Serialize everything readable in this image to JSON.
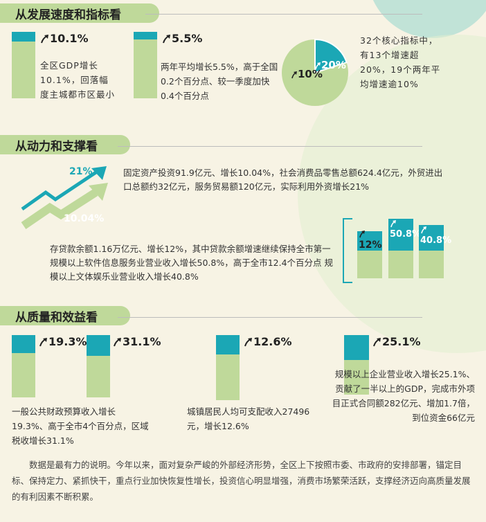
{
  "colors": {
    "teal": "#1ba7b5",
    "green": "#bfd99a",
    "bg": "#f7f3e4"
  },
  "section1": {
    "title": "从发展速度和指标看",
    "gdp": {
      "value": "10.1%",
      "text": "全区GDP增长10.1%，回落幅度主城都市区最小"
    },
    "avg": {
      "value": "5.5%",
      "text": "两年平均增长5.5%，高于全国0.2个百分点、较一季度加快0.4个百分点"
    },
    "pie": {
      "teal_label": "20%",
      "green_label": "10%",
      "teal_share": 0.2,
      "text": "32个核心指标中，有13个增速超20%，19个两年平均增速逾10%"
    }
  },
  "section2": {
    "title": "从动力和支撑看",
    "arrow_labels": [
      "21%",
      "10.04%"
    ],
    "text1": "固定资产投资91.9亿元、增长10.04%，社会消费品零售总额624.4亿元，外贸进出口总额约32亿元，服务贸易额120亿元，实际利用外资增长21%",
    "bars": [
      {
        "label": "12%"
      },
      {
        "label": "50.8%"
      },
      {
        "label": "40.8%"
      }
    ],
    "text2": "存贷款余额1.16万亿元、增长12%，其中贷款余额增速继续保持全市第一 规模以上软件信息服务业营业收入增长50.8%，高于全市12.4个百分点 规模以上文体娱乐业营业收入增长40.8%"
  },
  "section3": {
    "title": "从质量和效益看",
    "fiscal": {
      "v1": "19.3%",
      "v2": "31.1%",
      "text": "一般公共财政预算收入增长19.3%、高于全市4个百分点，区域税收增长31.1%"
    },
    "income": {
      "value": "12.6%",
      "text": "城镇居民人均可支配收入27496元，增长12.6%"
    },
    "enterprise": {
      "value": "25.1%",
      "text": "规模以上企业营业收入增长25.1%、贡献了一半以上的GDP，完成市外项目正式合同额282亿元、增加1.7倍，到位资金66亿元"
    }
  },
  "summary": "数据是最有力的说明。今年以来，面对复杂严峻的外部经济形势，全区上下按照市委、市政府的安排部署，锚定目标、保持定力、紧抓快干，重点行业加快恢复性增长，投资信心明显增强，消费市场繁荣活跃，支撑经济迈向高质量发展的有利因素不断积累。"
}
